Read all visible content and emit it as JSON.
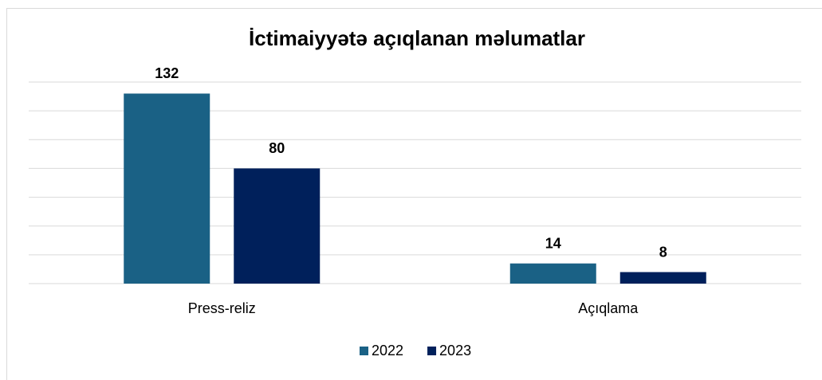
{
  "chart_data": {
    "type": "bar",
    "title": "İctimaiyyətə açıqlanan məlumatlar",
    "categories": [
      "Press-reliz",
      "Açıqlama"
    ],
    "series": [
      {
        "name": "2022",
        "color": "#1a6185",
        "values": [
          132,
          14
        ]
      },
      {
        "name": "2023",
        "color": "#00205b",
        "values": [
          80,
          8
        ]
      }
    ],
    "ylim": [
      0,
      140
    ],
    "yticks": [
      0,
      20,
      40,
      60,
      80,
      100,
      120,
      140
    ],
    "grid": true,
    "legend": "bottom"
  }
}
